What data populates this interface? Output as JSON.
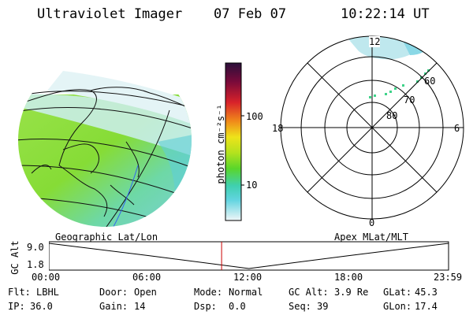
{
  "header": {
    "title": "Ultraviolet Imager",
    "date": "07 Feb 07",
    "time": "10:22:14 UT"
  },
  "colorbar": {
    "unit_label": "photon cm⁻²s⁻¹",
    "ticks": [
      {
        "label": "100",
        "value": 100
      },
      {
        "label": "10",
        "value": 10
      }
    ],
    "scale": "log",
    "range": [
      2,
      1000
    ]
  },
  "polar": {
    "clock_labels": {
      "top": "12",
      "right": "6",
      "bottom": "0",
      "left": "18"
    },
    "ring_labels": [
      "60",
      "70",
      "80"
    ]
  },
  "map_labels": {
    "left": "Geographic Lat/Lon",
    "right": "Apex MLat/MLT"
  },
  "timeline": {
    "ylabel": "GC Alt",
    "yticks": [
      "9.0",
      "1.8"
    ],
    "xticks": [
      "00:00",
      "06:00",
      "12:00",
      "18:00",
      "23:59"
    ],
    "marker_time": "10:22"
  },
  "info": {
    "flt_label": "Flt:",
    "flt_value": "LBHL",
    "ip_label": "IP:",
    "ip_value": "36.0",
    "door_label": "Door:",
    "door_value": "Open",
    "gain_label": "Gain:",
    "gain_value": "14",
    "mode_label": "Mode:",
    "mode_value": "Normal",
    "dsp_label": "Dsp:",
    "dsp_value": "0.0",
    "gcalt_label": "GC Alt:",
    "gcalt_value": "3.9 Re",
    "seq_label": "Seq:",
    "seq_value": "39",
    "glat_label": "GLat:",
    "glat_value": "45.3",
    "glon_label": "GLon:",
    "glon_value": "17.4"
  },
  "chart_data": {
    "type": "line",
    "x": [
      "00:00",
      "06:00",
      "12:00",
      "18:00",
      "23:59"
    ],
    "y": [
      9.0,
      5.5,
      1.8,
      5.5,
      9.0
    ],
    "xlabel": "",
    "ylabel": "GC Alt",
    "ylim": [
      1.8,
      9.0
    ],
    "marker": "10:22",
    "colors": {
      "curve": "#000000",
      "marker": "#cc0000"
    }
  }
}
